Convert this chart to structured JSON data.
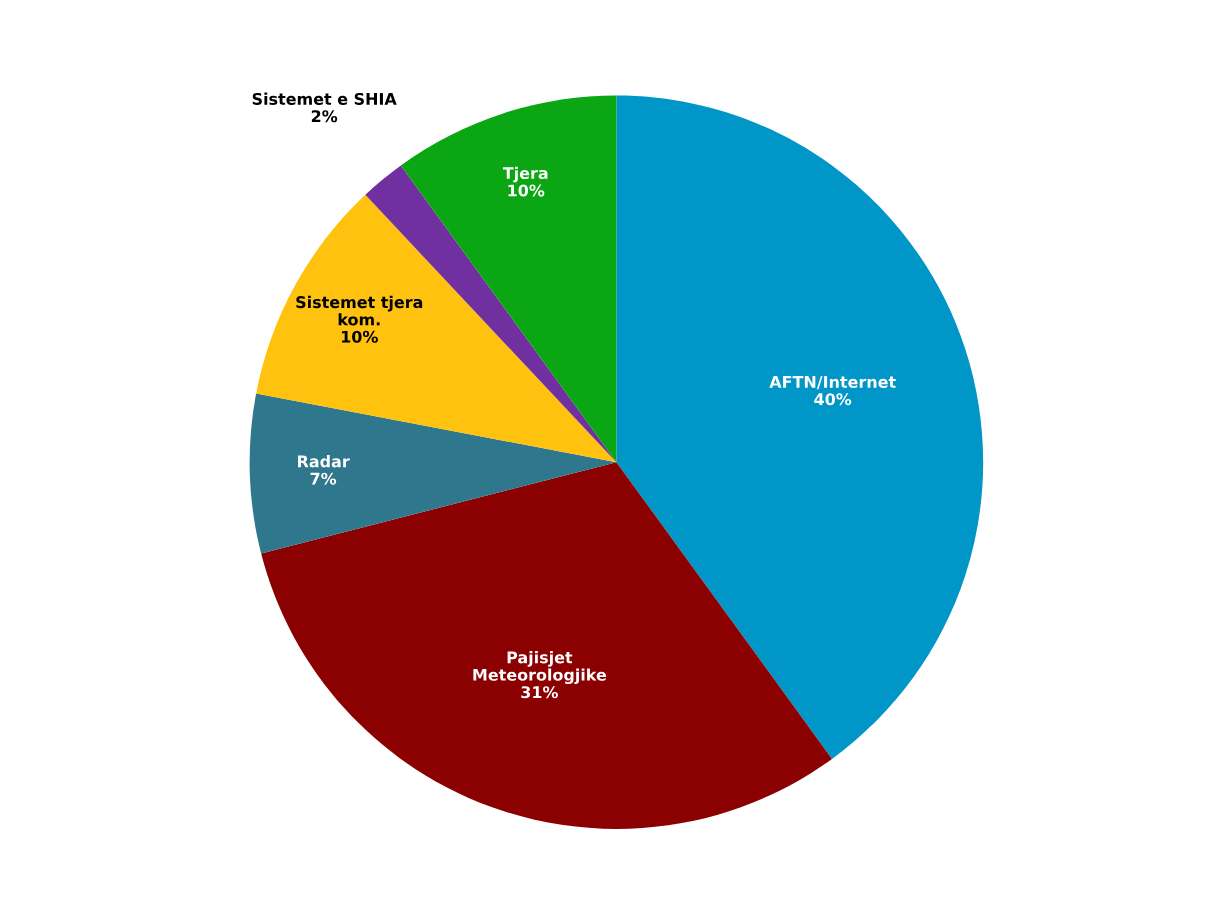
{
  "chart_data": {
    "type": "pie",
    "categories": [
      "AFTN/Internet",
      "Pajisjet\nMeteorologjike",
      "Radar",
      "Sistemet tjera\nkom.",
      "Sistemet e SHIA",
      "Tjera"
    ],
    "values": [
      40,
      31,
      7,
      10,
      2,
      10
    ],
    "colors": [
      "#0096c8",
      "#8b0000",
      "#2e778c",
      "#ffc20e",
      "#7030a0",
      "#0aa614"
    ],
    "value_labels": [
      "40%",
      "31%",
      "7%",
      "10%",
      "2%",
      "10%"
    ],
    "legend": false
  }
}
